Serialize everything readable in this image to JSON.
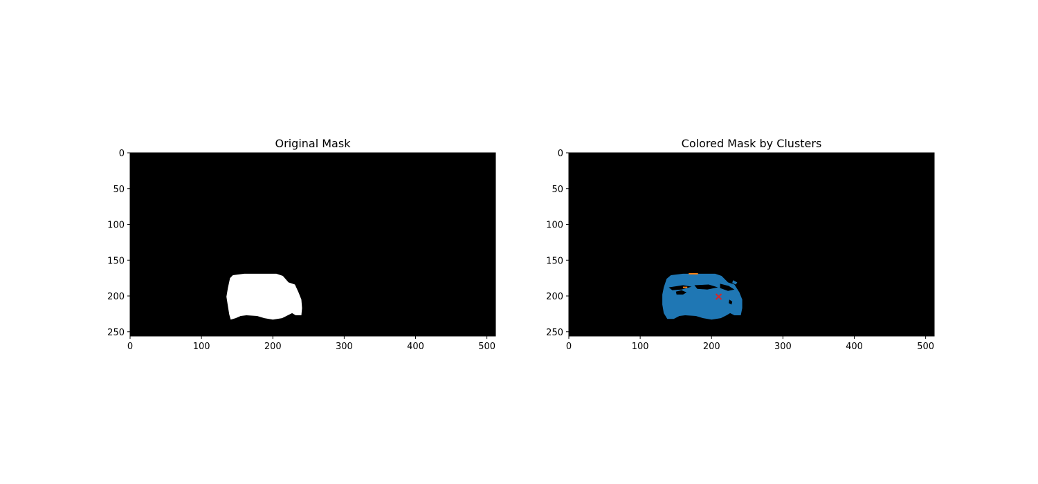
{
  "chart_data": [
    {
      "type": "image",
      "title": "Original Mask",
      "xlabel": "",
      "ylabel": "",
      "xlim": [
        0,
        512
      ],
      "ylim": [
        256,
        0
      ],
      "xticks": [
        0,
        100,
        200,
        300,
        400,
        500
      ],
      "yticks": [
        0,
        50,
        100,
        150,
        200,
        250
      ],
      "background_color": "#000000",
      "mask_color": "#ffffff",
      "mask_outline": [
        [
          135,
          201
        ],
        [
          137,
          189
        ],
        [
          140,
          175
        ],
        [
          144,
          171
        ],
        [
          160,
          169
        ],
        [
          205,
          169
        ],
        [
          214,
          172
        ],
        [
          222,
          181
        ],
        [
          231,
          184
        ],
        [
          236,
          195
        ],
        [
          240,
          205
        ],
        [
          241,
          217
        ],
        [
          240,
          227
        ],
        [
          232,
          227
        ],
        [
          227,
          224
        ],
        [
          221,
          227
        ],
        [
          213,
          231
        ],
        [
          200,
          233
        ],
        [
          188,
          231
        ],
        [
          178,
          228
        ],
        [
          163,
          227
        ],
        [
          155,
          228
        ],
        [
          148,
          231
        ],
        [
          141,
          233
        ],
        [
          139,
          226
        ],
        [
          137,
          214
        ]
      ],
      "grid": false
    },
    {
      "type": "image",
      "title": "Colored Mask by Clusters",
      "xlabel": "",
      "ylabel": "",
      "xlim": [
        0,
        512
      ],
      "ylim": [
        256,
        0
      ],
      "xticks": [
        0,
        100,
        200,
        300,
        400,
        500
      ],
      "yticks": [
        0,
        50,
        100,
        150,
        200,
        250
      ],
      "background_color": "#000000",
      "cluster_color": "#1f77b4",
      "highlight_color": "#ff7f0e",
      "cluster_outline": [
        [
          131,
          198
        ],
        [
          133,
          188
        ],
        [
          137,
          176
        ],
        [
          143,
          171
        ],
        [
          160,
          169
        ],
        [
          205,
          169
        ],
        [
          214,
          172
        ],
        [
          223,
          181
        ],
        [
          232,
          184
        ],
        [
          239,
          195
        ],
        [
          243,
          205
        ],
        [
          243,
          217
        ],
        [
          241,
          227
        ],
        [
          232,
          227
        ],
        [
          226,
          224
        ],
        [
          221,
          227
        ],
        [
          213,
          231
        ],
        [
          200,
          233
        ],
        [
          188,
          231
        ],
        [
          178,
          228
        ],
        [
          163,
          227
        ],
        [
          155,
          228
        ],
        [
          147,
          232
        ],
        [
          138,
          232
        ],
        [
          133,
          224
        ],
        [
          131,
          212
        ]
      ],
      "holes": [
        [
          [
            140,
            188
          ],
          [
            160,
            185
          ],
          [
            172,
            187
          ],
          [
            158,
            191
          ],
          [
            145,
            192
          ]
        ],
        [
          [
            176,
            185
          ],
          [
            196,
            184
          ],
          [
            209,
            188
          ],
          [
            194,
            191
          ],
          [
            180,
            190
          ]
        ],
        [
          [
            212,
            183
          ],
          [
            224,
            186
          ],
          [
            232,
            191
          ],
          [
            223,
            193
          ],
          [
            212,
            189
          ]
        ],
        [
          [
            150,
            194
          ],
          [
            158,
            192
          ],
          [
            165,
            195
          ],
          [
            160,
            198
          ],
          [
            151,
            198
          ]
        ],
        [
          [
            230,
            178
          ],
          [
            236,
            181
          ],
          [
            234,
            184
          ],
          [
            229,
            182
          ]
        ],
        [
          [
            225,
            205
          ],
          [
            229,
            208
          ],
          [
            228,
            212
          ],
          [
            224,
            210
          ]
        ]
      ],
      "highlight_segments": [
        [
          [
            168,
            169
          ],
          [
            181,
            169
          ]
        ],
        [
          [
            160,
            188
          ],
          [
            166,
            188
          ]
        ]
      ],
      "centroid": {
        "x": 210,
        "y": 201,
        "marker": "x",
        "color": "#d62728"
      },
      "grid": false
    }
  ]
}
